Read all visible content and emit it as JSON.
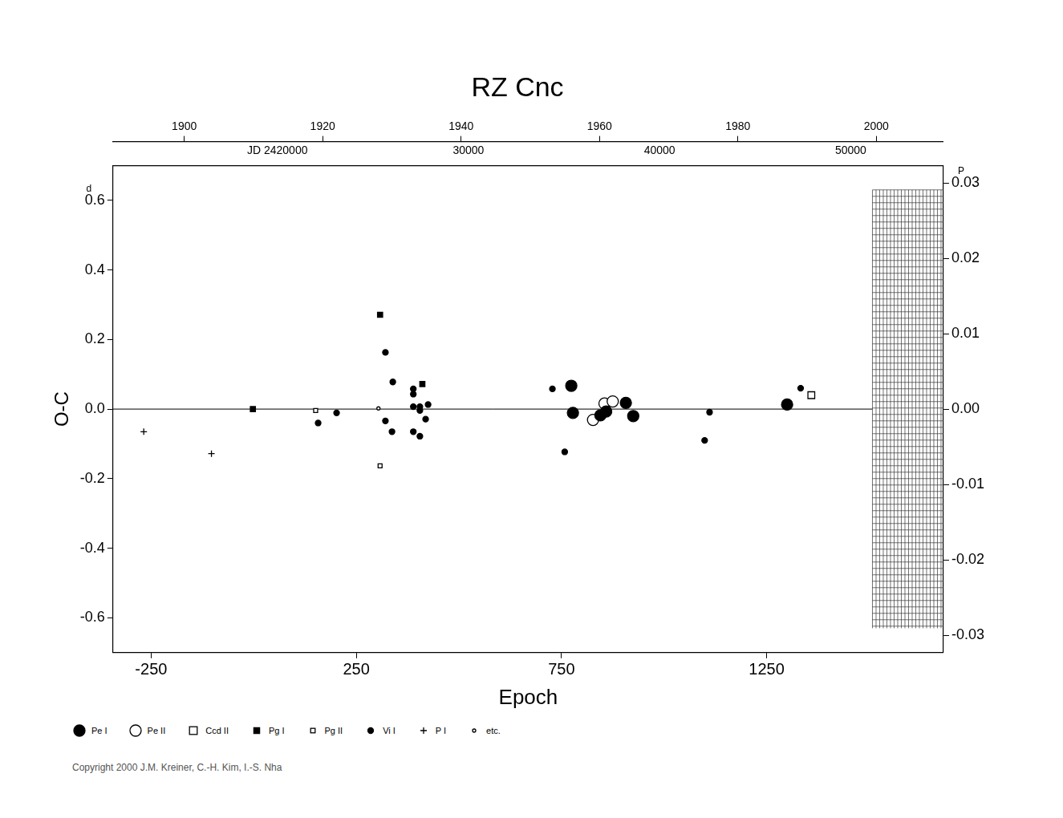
{
  "chart_data": {
    "type": "scatter",
    "title": "RZ Cnc",
    "x_label": "Epoch",
    "y_label": "O-C",
    "y_unit": "d",
    "y2_unit": "P",
    "xlim": [
      -343,
      1681
    ],
    "xticks": [
      -250,
      250,
      750,
      1250
    ],
    "x2lim": [
      1889.7,
      2009.7
    ],
    "x2ticks": [
      1900,
      1920,
      1940,
      1960,
      1980,
      2000
    ],
    "x3lim": [
      11400,
      54850
    ],
    "x3ticks": [
      {
        "value": 20000,
        "label": "JD 2420000"
      },
      30000,
      40000,
      50000
    ],
    "ylim": [
      -0.7,
      0.7
    ],
    "yticks": [
      -0.6,
      -0.4,
      -0.2,
      {
        "value": 0,
        "label": "0.0"
      },
      0.2,
      0.4,
      0.6
    ],
    "y2lim": [
      -0.0323,
      0.0323
    ],
    "y2ticks": [
      -0.03,
      -0.02,
      -0.01,
      {
        "value": 0,
        "label": "0.00"
      },
      0.01,
      0.02,
      0.03
    ],
    "reference_y": 0,
    "shaded_region": {
      "x": [
        1508,
        1681
      ],
      "y": [
        -0.63,
        0.63
      ]
    },
    "grid": false,
    "legend": "bottom",
    "series": [
      {
        "name": "Pe I",
        "color": "#000000",
        "marker": "big_circle",
        "x": [
          774,
          778,
          845,
          859,
          907,
          925,
          1300
        ],
        "values": [
          0.067,
          -0.011,
          -0.018,
          -0.007,
          0.018,
          -0.02,
          0.013
        ]
      },
      {
        "name": "Pe II",
        "color": "#000000",
        "marker": "big_open_circle",
        "x": [
          827,
          855,
          875
        ],
        "values": [
          -0.031,
          0.016,
          0.022
        ]
      },
      {
        "name": "Ccd II",
        "color": "#000000",
        "marker": "open_square",
        "x": [
          1359
        ],
        "values": [
          0.04
        ]
      },
      {
        "name": "Pg I",
        "color": "#000000",
        "marker": "filled_square",
        "x": [
          -2,
          308,
          411
        ],
        "values": [
          0.0,
          0.271,
          0.072
        ]
      },
      {
        "name": "Pg II",
        "color": "#000000",
        "marker": "small_open_square",
        "x": [
          151,
          308
        ],
        "values": [
          -0.004,
          -0.163
        ]
      },
      {
        "name": "Vi I",
        "color": "#000000",
        "marker": "small_circle",
        "x": [
          157,
          202,
          321,
          321,
          339,
          337,
          389,
          389,
          389,
          389,
          405,
          405,
          405,
          419,
          425,
          728,
          758,
          1099,
          1111,
          1333
        ],
        "values": [
          -0.04,
          -0.011,
          0.163,
          -0.034,
          0.078,
          -0.065,
          0.058,
          0.043,
          0.007,
          -0.065,
          0.007,
          -0.004,
          -0.078,
          -0.029,
          0.013,
          0.058,
          -0.123,
          -0.09,
          -0.009,
          0.06
        ]
      },
      {
        "name": "P I",
        "color": "#000000",
        "marker": "plus",
        "x": [
          -268,
          -103
        ],
        "values": [
          -0.065,
          -0.128
        ]
      },
      {
        "name": "etc.",
        "color": "#000000",
        "marker": "tiny_open_circle",
        "x": [
          304
        ],
        "values": [
          0.002
        ]
      }
    ],
    "footer": "Copyright 2000 J.M. Kreiner, C.-H. Kim, I.-S. Nha"
  }
}
